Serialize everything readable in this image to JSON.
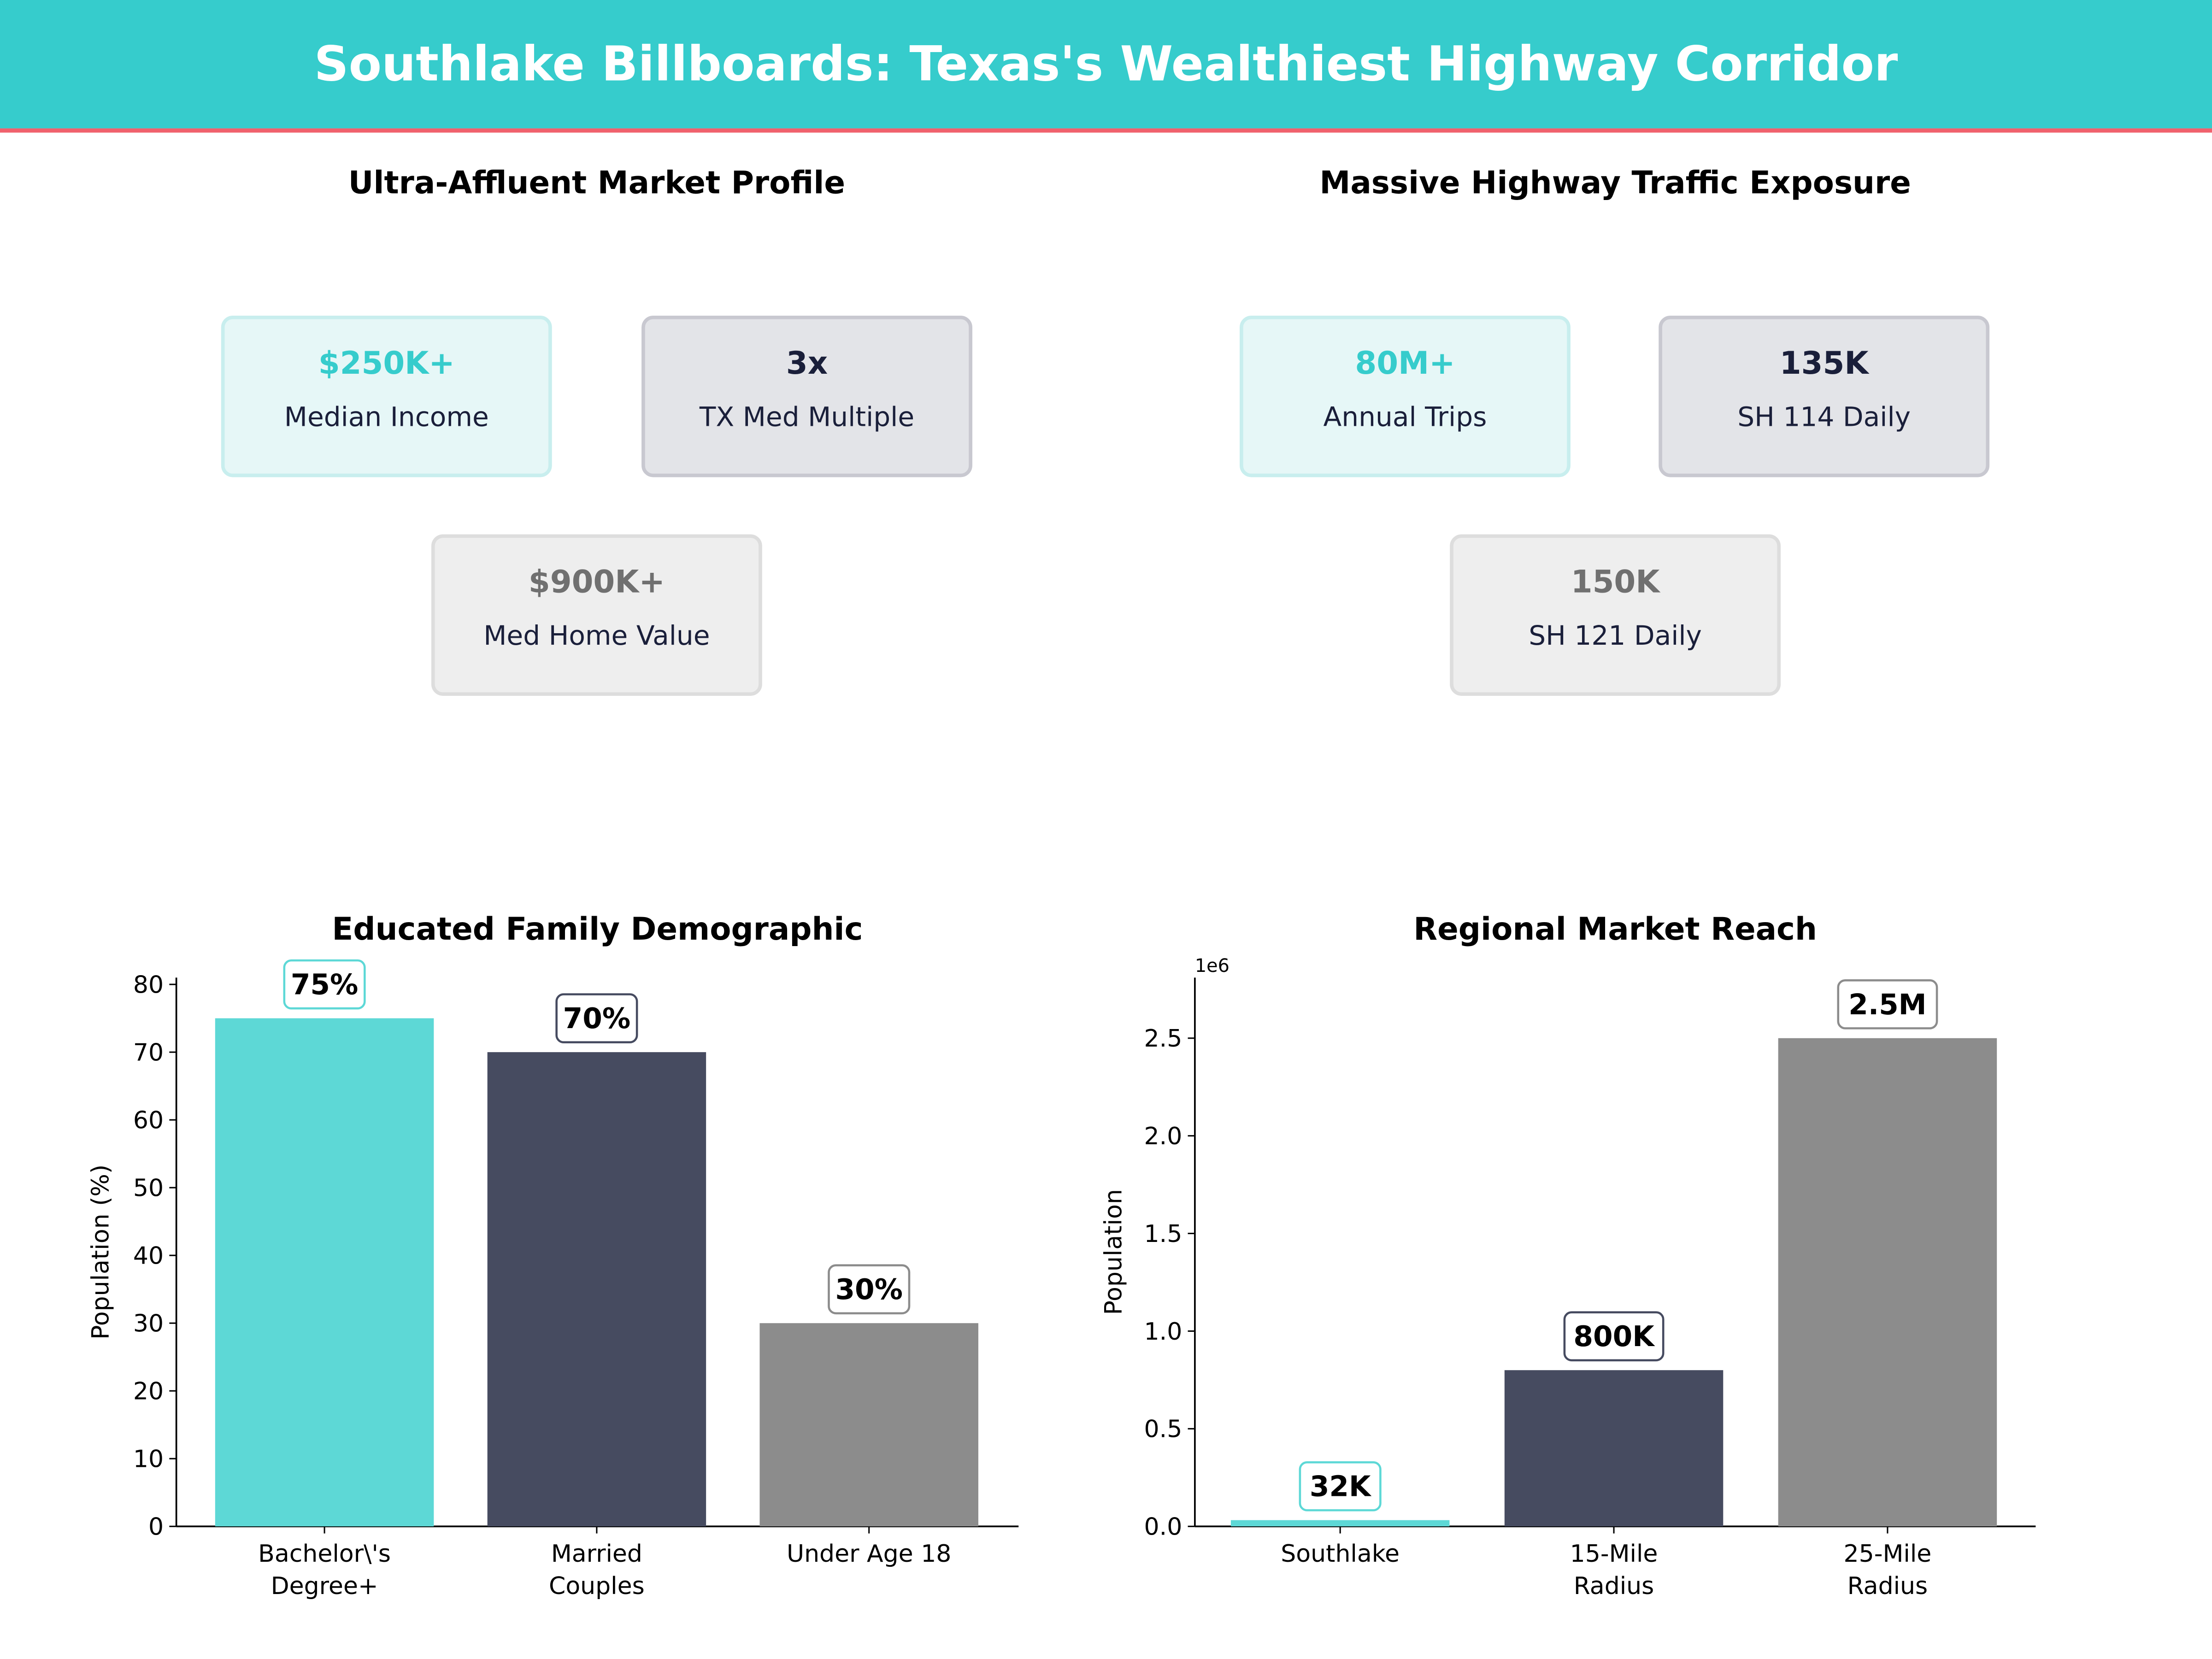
{
  "header": {
    "title": "Southlake Billboards: Texas's Wealthiest Highway Corridor"
  },
  "colors": {
    "header_bg": "#36CCCC",
    "header_rule": "#F0616D",
    "teal": "#5DD8D6",
    "navy": "#464B60",
    "gray": "#8C8C8C"
  },
  "panels": [
    {
      "title": "Ultra-Affluent Market Profile",
      "cards": [
        {
          "value": "$250K+",
          "label": "Median Income",
          "style": "teal"
        },
        {
          "value": "3x",
          "label": "TX Med Multiple",
          "style": "navy"
        },
        {
          "value": "$900K+",
          "label": "Med Home Value",
          "style": "gray"
        }
      ]
    },
    {
      "title": "Massive Highway Traffic Exposure",
      "cards": [
        {
          "value": "80M+",
          "label": "Annual Trips",
          "style": "teal"
        },
        {
          "value": "135K",
          "label": "SH 114 Daily",
          "style": "navy"
        },
        {
          "value": "150K",
          "label": "SH 121 Daily",
          "style": "gray"
        }
      ]
    }
  ],
  "chart_data": [
    {
      "type": "bar",
      "title": "Educated Family Demographic",
      "xlabel": "",
      "ylabel": "Population (%)",
      "categories": [
        [
          "Bachelor\\'s",
          "Degree+"
        ],
        [
          "Married",
          "Couples"
        ],
        [
          "Under Age 18"
        ]
      ],
      "values": [
        75,
        70,
        30
      ],
      "data_labels": [
        "75%",
        "70%",
        "30%"
      ],
      "colors": [
        "#5DD8D6",
        "#464B60",
        "#8C8C8C"
      ],
      "ylim": [
        0,
        81
      ],
      "yticks": [
        0,
        10,
        20,
        30,
        40,
        50,
        60,
        70,
        80
      ],
      "ytick_labels": [
        "0",
        "10",
        "20",
        "30",
        "40",
        "50",
        "60",
        "70",
        "80"
      ],
      "grid": false
    },
    {
      "type": "bar",
      "title": "Regional Market Reach",
      "xlabel": "",
      "ylabel": "Population",
      "offset_text": "1e6",
      "categories": [
        [
          "Southlake"
        ],
        [
          "15-Mile",
          "Radius"
        ],
        [
          "25-Mile",
          "Radius"
        ]
      ],
      "values": [
        32000,
        800000,
        2500000
      ],
      "data_labels": [
        "32K",
        "800K",
        "2.5M"
      ],
      "colors": [
        "#5DD8D6",
        "#464B60",
        "#8C8C8C"
      ],
      "ylim": [
        0,
        2810000
      ],
      "yticks": [
        0,
        500000,
        1000000,
        1500000,
        2000000,
        2500000
      ],
      "ytick_labels": [
        "0.0",
        "0.5",
        "1.0",
        "1.5",
        "2.0",
        "2.5"
      ],
      "grid": false
    }
  ]
}
